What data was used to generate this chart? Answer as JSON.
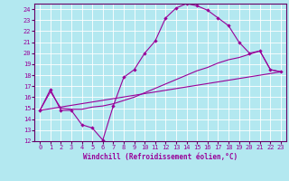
{
  "xlabel": "Windchill (Refroidissement éolien,°C)",
  "bg_color": "#b3e8f0",
  "line_color": "#990099",
  "spine_color": "#660066",
  "xlim": [
    -0.5,
    23.5
  ],
  "ylim": [
    12,
    24.5
  ],
  "xticks": [
    0,
    1,
    2,
    3,
    4,
    5,
    6,
    7,
    8,
    9,
    10,
    11,
    12,
    13,
    14,
    15,
    16,
    17,
    18,
    19,
    20,
    21,
    22,
    23
  ],
  "yticks": [
    12,
    13,
    14,
    15,
    16,
    17,
    18,
    19,
    20,
    21,
    22,
    23,
    24
  ],
  "line1_x": [
    0,
    1,
    2,
    3,
    4,
    5,
    6,
    7,
    8,
    9,
    10,
    11,
    12,
    13,
    14,
    15,
    16,
    17,
    18,
    19,
    20,
    21,
    22,
    23
  ],
  "line1_y": [
    14.8,
    16.7,
    14.8,
    14.8,
    13.5,
    13.2,
    12.1,
    15.2,
    17.8,
    18.5,
    20.0,
    21.1,
    23.2,
    24.1,
    24.5,
    24.3,
    23.9,
    23.2,
    22.5,
    21.0,
    20.0,
    20.2,
    18.5,
    18.3
  ],
  "line2_x": [
    0,
    1,
    2,
    3,
    4,
    5,
    6,
    7,
    8,
    9,
    10,
    11,
    12,
    13,
    14,
    15,
    16,
    17,
    18,
    19,
    20,
    21,
    22,
    23
  ],
  "line2_y": [
    14.8,
    16.5,
    15.0,
    14.9,
    14.9,
    15.1,
    15.2,
    15.4,
    15.7,
    16.0,
    16.4,
    16.8,
    17.2,
    17.6,
    18.0,
    18.4,
    18.7,
    19.1,
    19.4,
    19.6,
    19.9,
    20.2,
    18.5,
    18.3
  ],
  "line3_x": [
    0,
    23
  ],
  "line3_y": [
    14.8,
    18.3
  ]
}
